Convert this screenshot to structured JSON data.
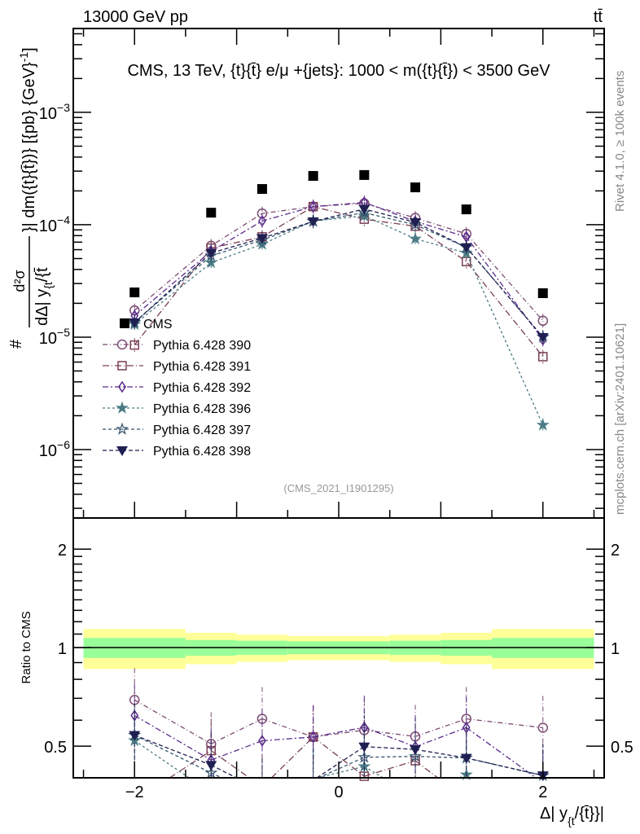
{
  "header": {
    "beam_label": "13000 GeV pp",
    "process_label": "tt̄"
  },
  "side_text": {
    "rivet": "Rivet 4.1.0, ≥ 100k events",
    "mcplots": "mcplots.cern.ch [arXiv:2401.10621]"
  },
  "colors": {
    "CMS": "#000000",
    "p390": "#7b4a72",
    "p391": "#7a3f55",
    "p392": "#5b2b8c",
    "p396": "#4b7c85",
    "p397": "#35546e",
    "p398": "#1f1f52",
    "band_inner": "#99ff99",
    "band_outer": "#ffff99"
  },
  "chart_data": [
    {
      "type": "scatter",
      "title": "CMS, 13 TeV, {t}{t̄} e/μ +{jets}: 1000 < m({t}{t̄}) < 3500 GeV",
      "analysis_id": "(CMS_2021_I1901295)",
      "ylabel_prefix": "#",
      "ylabel_num": "d²σ",
      "ylabel_den": "dΔ| y",
      "ylabel_den_sub": "{t",
      "ylabel_den_tail": "/{t̄",
      "ylabel_suffix": "}| dm({t}{t̄})} [{pb} {GeV}",
      "ylabel_sup": "-1",
      "ylabel_close": "]",
      "yscale": "log",
      "ylim": [
        2.46e-07,
        0.00557
      ],
      "xlim": [
        -2.6,
        2.6
      ],
      "yticks": [
        {
          "v": 0.001,
          "base": "10",
          "exp": "−3"
        },
        {
          "v": 0.0001,
          "base": "10",
          "exp": "−4"
        },
        {
          "v": 1e-05,
          "base": "10",
          "exp": "−5"
        },
        {
          "v": 1e-06,
          "base": "10",
          "exp": "−6"
        }
      ],
      "x": [
        -2,
        -1.25,
        -0.75,
        -0.25,
        0.25,
        0.75,
        1.25,
        2
      ],
      "bin_edges": [
        -2.5,
        -1.5,
        -1,
        -0.5,
        0,
        0.5,
        1,
        1.5,
        2.5
      ],
      "legend_position": "left-middle",
      "series": [
        {
          "key": "CMS",
          "name": "CMS",
          "marker": "filled-square",
          "dash": "",
          "values": [
            2.5e-05,
            0.000128,
            0.000208,
            0.000272,
            0.000277,
            0.000215,
            0.000137,
            2.46e-05
          ]
        },
        {
          "key": "p390",
          "name": "Pythia 6.428 390",
          "marker": "open-circle",
          "dash": "6 3 1 3",
          "values": [
            1.73e-05,
            6.5e-05,
            0.000126,
            0.000145,
            0.000155,
            0.000115,
            8.3e-05,
            1.4e-05
          ]
        },
        {
          "key": "p391",
          "name": "Pythia 6.428 391",
          "marker": "open-square",
          "dash": "8 3 1 3",
          "values": [
            8.5e-06,
            6.2e-05,
            7.8e-05,
            0.000145,
            0.000112,
            9.7e-05,
            4.7e-05,
            6.7e-06
          ]
        },
        {
          "key": "p392",
          "name": "Pythia 6.428 392",
          "marker": "open-diamond",
          "dash": "7 3 2 3",
          "values": [
            1.55e-05,
            5.8e-05,
            0.000108,
            0.000145,
            0.000158,
            0.000107,
            7.8e-05,
            9.5e-06
          ]
        },
        {
          "key": "p396",
          "name": "Pythia 6.428 396",
          "marker": "filled-star",
          "dash": "3 3",
          "values": [
            1.3e-05,
            4.6e-05,
            6.7e-05,
            0.000108,
            0.00012,
            7.5e-05,
            5.6e-05,
            1.65e-06
          ]
        },
        {
          "key": "p397",
          "name": "Pythia 6.428 397",
          "marker": "open-star",
          "dash": "4 3",
          "values": [
            1.35e-05,
            5.3e-05,
            7.3e-05,
            0.000107,
            0.000128,
            0.0001,
            6.3e-05,
            1e-05
          ]
        },
        {
          "key": "p398",
          "name": "Pythia 6.428 398",
          "marker": "filled-triangle-down",
          "dash": "5 3",
          "values": [
            1.35e-05,
            5.6e-05,
            7.6e-05,
            0.000107,
            0.000138,
            0.000105,
            6.3e-05,
            1e-05
          ]
        }
      ]
    },
    {
      "type": "scatter",
      "ylabel": "Ratio to CMS",
      "xlabel_main": "Δ| y",
      "xlabel_sub": "{t",
      "xlabel_tail": "/{t̄}}|",
      "yscale": "log",
      "ylim": [
        0.4,
        2.49
      ],
      "xlim": [
        -2.6,
        2.6
      ],
      "yticks": [
        {
          "v": 2,
          "label": "2"
        },
        {
          "v": 1,
          "label": "1"
        },
        {
          "v": 0.5,
          "label": "0.5"
        }
      ],
      "xticks": [
        {
          "v": -2,
          "label": "−2"
        },
        {
          "v": 0,
          "label": "0"
        },
        {
          "v": 2,
          "label": "2"
        }
      ],
      "reference": "CMS",
      "band_inner_rel": [
        0.07,
        0.055,
        0.05,
        0.045,
        0.045,
        0.05,
        0.055,
        0.07
      ],
      "band_outer_rel": [
        0.14,
        0.11,
        0.095,
        0.085,
        0.085,
        0.095,
        0.11,
        0.14
      ]
    }
  ]
}
